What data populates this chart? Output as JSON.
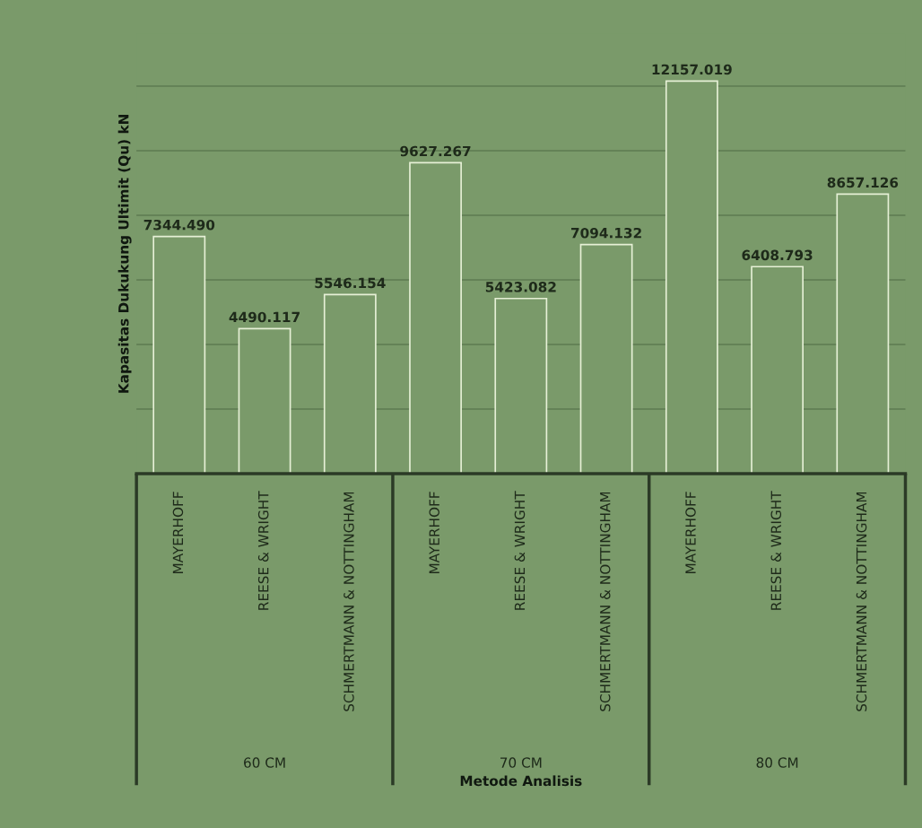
{
  "chart_data": {
    "type": "bar",
    "xlabel": "Metode Analisis",
    "ylabel": "Kapasitas Dukukung Ultimit (Qu) kN",
    "categories": [
      "MAYERHOFF",
      "REESE & WRIGHT",
      "SCHMERTMANN & NOTTINGHAM",
      "MAYERHOFF",
      "REESE & WRIGHT",
      "SCHMERTMANN & NOTTINGHAM",
      "MAYERHOFF",
      "REESE & WRIGHT",
      "SCHMERTMANN & NOTTINGHAM"
    ],
    "values": [
      7344.49,
      4490.117,
      5546.154,
      9627.267,
      5423.082,
      7094.132,
      12157.019,
      6408.793,
      8657.126
    ],
    "value_labels": [
      "7344.490",
      "4490.117",
      "5546.154",
      "9627.267",
      "5423.082",
      "7094.132",
      "12157.019",
      "6408.793",
      "8657.126"
    ],
    "color": "#e6f0d6",
    "tick_labels": "x",
    "grid": "y",
    "annotations": [
      "60 CM",
      "70 CM",
      "80 CM"
    ]
  }
}
